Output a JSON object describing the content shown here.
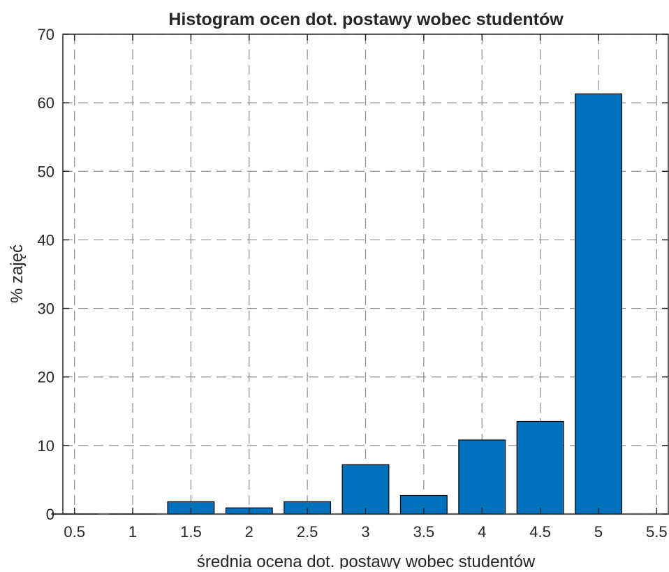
{
  "chart_data": {
    "type": "bar",
    "title": "Histogram ocen dot. postawy wobec studentów",
    "xlabel": "średnia ocena dot. postawy wobec studentów",
    "ylabel": "% zajęć",
    "x": [
      0.5,
      1,
      1.5,
      2,
      2.5,
      3,
      3.5,
      4,
      4.5,
      5
    ],
    "values": [
      0,
      0,
      1.8,
      0.9,
      1.8,
      7.2,
      2.7,
      10.8,
      13.5,
      61.3
    ],
    "xlim": [
      0.4,
      5.6
    ],
    "ylim": [
      0,
      70
    ],
    "xticks": [
      "0.5",
      "1",
      "1.5",
      "2",
      "2.5",
      "3",
      "3.5",
      "4",
      "4.5",
      "5",
      "5.5"
    ],
    "yticks": [
      "0",
      "10",
      "20",
      "30",
      "40",
      "50",
      "60",
      "70"
    ],
    "bar_color": "#0072bd",
    "grid": true,
    "grid_style": "dashed"
  }
}
